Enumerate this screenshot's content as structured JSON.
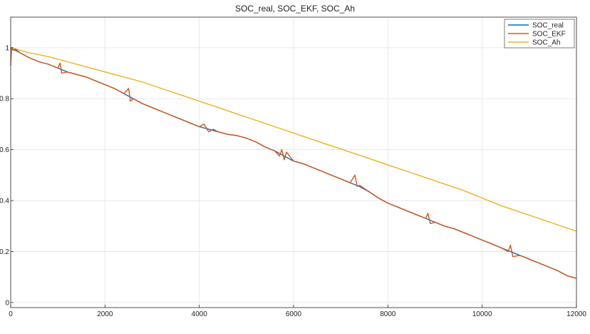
{
  "chart_data": {
    "type": "line",
    "title": "SOC_real, SOC_EKF, SOC_Ah",
    "xlabel": "",
    "ylabel": "",
    "xlim": [
      0,
      12000
    ],
    "ylim": [
      -0.02,
      1.12
    ],
    "x_ticks": [
      0,
      2000,
      4000,
      6000,
      8000,
      10000,
      12000
    ],
    "x_tick_labels": [
      "0",
      "2000",
      "4000",
      "6000",
      "8000",
      "10000",
      "12000"
    ],
    "y_ticks": [
      0,
      0.2,
      0.4,
      0.6,
      0.8,
      1
    ],
    "y_tick_labels": [
      "0",
      "0.2",
      "0.4",
      "0.6",
      "0.8",
      "1"
    ],
    "grid": true,
    "legend_position": "top-right",
    "series": [
      {
        "name": "SOC_real",
        "color": "#0072BD",
        "x": [
          0,
          100,
          200,
          400,
          600,
          800,
          1000,
          1200,
          1400,
          1600,
          1800,
          2000,
          2200,
          2400,
          2600,
          2800,
          3000,
          3200,
          3400,
          3600,
          3800,
          4000,
          4200,
          4400,
          4600,
          4800,
          5000,
          5200,
          5400,
          5600,
          5800,
          6000,
          6200,
          6400,
          6600,
          6800,
          7000,
          7200,
          7400,
          7600,
          7800,
          8000,
          8200,
          8400,
          8600,
          8800,
          9000,
          9200,
          9400,
          9600,
          9800,
          10000,
          10200,
          10400,
          10600,
          10800,
          11000,
          11200,
          11400,
          11600,
          11800,
          12000
        ],
        "y": [
          0.995,
          0.99,
          0.98,
          0.96,
          0.945,
          0.935,
          0.92,
          0.905,
          0.895,
          0.885,
          0.87,
          0.855,
          0.84,
          0.82,
          0.8,
          0.78,
          0.765,
          0.75,
          0.735,
          0.72,
          0.705,
          0.69,
          0.68,
          0.67,
          0.66,
          0.655,
          0.645,
          0.63,
          0.61,
          0.595,
          0.575,
          0.555,
          0.545,
          0.53,
          0.515,
          0.5,
          0.485,
          0.47,
          0.455,
          0.435,
          0.41,
          0.39,
          0.375,
          0.36,
          0.345,
          0.33,
          0.315,
          0.3,
          0.29,
          0.275,
          0.26,
          0.245,
          0.23,
          0.215,
          0.2,
          0.185,
          0.17,
          0.155,
          0.14,
          0.125,
          0.105,
          0.095
        ]
      },
      {
        "name": "SOC_EKF",
        "color": "#D95319",
        "x": [
          0,
          20,
          50,
          100,
          200,
          400,
          600,
          800,
          1000,
          1050,
          1080,
          1200,
          1400,
          1600,
          1800,
          2000,
          2200,
          2400,
          2500,
          2540,
          2600,
          2800,
          3000,
          3200,
          3400,
          3600,
          3800,
          4000,
          4100,
          4200,
          4300,
          4400,
          4600,
          4800,
          5000,
          5200,
          5400,
          5600,
          5700,
          5750,
          5800,
          5850,
          6000,
          6200,
          6400,
          6600,
          6800,
          7000,
          7200,
          7300,
          7350,
          7400,
          7600,
          7800,
          8000,
          8200,
          8400,
          8600,
          8800,
          8850,
          8900,
          9000,
          9200,
          9400,
          9600,
          9800,
          10000,
          10200,
          10400,
          10550,
          10600,
          10650,
          10800,
          11000,
          11200,
          11400,
          11600,
          11800,
          12000
        ],
        "y": [
          0.93,
          1.0,
          0.99,
          0.995,
          0.98,
          0.96,
          0.945,
          0.935,
          0.92,
          0.94,
          0.9,
          0.905,
          0.895,
          0.885,
          0.87,
          0.855,
          0.84,
          0.82,
          0.84,
          0.79,
          0.8,
          0.78,
          0.765,
          0.75,
          0.735,
          0.72,
          0.705,
          0.69,
          0.7,
          0.67,
          0.68,
          0.67,
          0.66,
          0.655,
          0.645,
          0.63,
          0.61,
          0.595,
          0.575,
          0.6,
          0.56,
          0.59,
          0.555,
          0.545,
          0.53,
          0.515,
          0.5,
          0.485,
          0.47,
          0.5,
          0.455,
          0.46,
          0.435,
          0.41,
          0.39,
          0.375,
          0.36,
          0.345,
          0.33,
          0.35,
          0.31,
          0.315,
          0.3,
          0.29,
          0.275,
          0.26,
          0.245,
          0.23,
          0.215,
          0.2,
          0.225,
          0.18,
          0.185,
          0.17,
          0.155,
          0.14,
          0.125,
          0.105,
          0.095
        ]
      },
      {
        "name": "SOC_Ah",
        "color": "#EDB120",
        "x": [
          0,
          100,
          400,
          800,
          1200,
          1600,
          2000,
          2400,
          2800,
          3200,
          3600,
          4000,
          4400,
          4800,
          5200,
          5600,
          6000,
          6400,
          6800,
          7200,
          7600,
          8000,
          8400,
          8800,
          9200,
          9600,
          10000,
          10400,
          10800,
          11200,
          11600,
          12000
        ],
        "y": [
          1.0,
          0.995,
          0.98,
          0.965,
          0.945,
          0.925,
          0.905,
          0.885,
          0.865,
          0.84,
          0.815,
          0.79,
          0.765,
          0.74,
          0.715,
          0.69,
          0.665,
          0.64,
          0.615,
          0.59,
          0.565,
          0.54,
          0.515,
          0.49,
          0.465,
          0.44,
          0.41,
          0.38,
          0.355,
          0.33,
          0.305,
          0.28
        ]
      }
    ]
  }
}
